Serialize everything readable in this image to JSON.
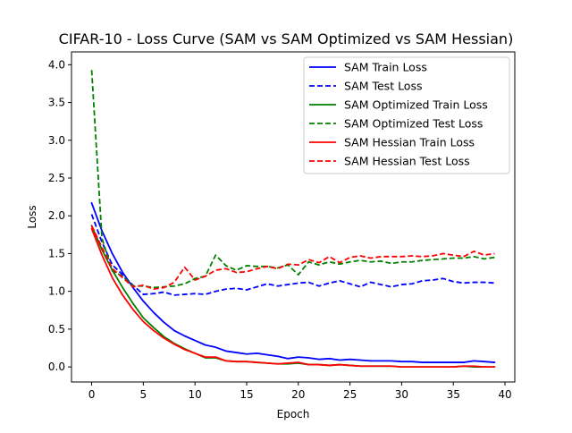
{
  "chart_data": {
    "type": "line",
    "title": "CIFAR-10 - Loss Curve (SAM vs SAM Optimized vs SAM Hessian)",
    "xlabel": "Epoch",
    "ylabel": "Loss",
    "xlim": [
      -1.95,
      40.95
    ],
    "ylim": [
      -0.2,
      4.17
    ],
    "xticks": [
      0,
      5,
      10,
      15,
      20,
      25,
      30,
      35,
      40
    ],
    "yticks": [
      0.0,
      0.5,
      1.0,
      1.5,
      2.0,
      2.5,
      3.0,
      3.5,
      4.0
    ],
    "xtick_labels": [
      "0",
      "5",
      "10",
      "15",
      "20",
      "25",
      "30",
      "35",
      "40"
    ],
    "ytick_labels": [
      "0.0",
      "0.5",
      "1.0",
      "1.5",
      "2.0",
      "2.5",
      "3.0",
      "3.5",
      "4.0"
    ],
    "grid": false,
    "legend_position": "top-right",
    "x": [
      0,
      1,
      2,
      3,
      4,
      5,
      6,
      7,
      8,
      9,
      10,
      11,
      12,
      13,
      14,
      15,
      16,
      17,
      18,
      19,
      20,
      21,
      22,
      23,
      24,
      25,
      26,
      27,
      28,
      29,
      30,
      31,
      32,
      33,
      34,
      35,
      36,
      37,
      38,
      39
    ],
    "series": [
      {
        "name": "SAM Train Loss",
        "color": "#0000ff",
        "style": "solid",
        "values": [
          2.17,
          1.8,
          1.5,
          1.25,
          1.05,
          0.87,
          0.72,
          0.59,
          0.48,
          0.41,
          0.35,
          0.29,
          0.26,
          0.21,
          0.19,
          0.17,
          0.18,
          0.16,
          0.14,
          0.11,
          0.13,
          0.12,
          0.1,
          0.11,
          0.09,
          0.1,
          0.09,
          0.08,
          0.08,
          0.08,
          0.07,
          0.07,
          0.06,
          0.06,
          0.06,
          0.06,
          0.06,
          0.08,
          0.07,
          0.06
        ]
      },
      {
        "name": "SAM Test Loss",
        "color": "#0000ff",
        "style": "dashed",
        "values": [
          2.02,
          1.65,
          1.35,
          1.22,
          1.08,
          0.96,
          0.97,
          0.99,
          0.95,
          0.96,
          0.97,
          0.96,
          1.0,
          1.03,
          1.04,
          1.02,
          1.06,
          1.1,
          1.07,
          1.09,
          1.11,
          1.12,
          1.07,
          1.11,
          1.14,
          1.1,
          1.06,
          1.12,
          1.09,
          1.06,
          1.09,
          1.1,
          1.14,
          1.15,
          1.17,
          1.13,
          1.11,
          1.12,
          1.12,
          1.11
        ]
      },
      {
        "name": "SAM Optimized Train Loss",
        "color": "#008000",
        "style": "solid",
        "values": [
          1.87,
          1.55,
          1.28,
          1.05,
          0.84,
          0.65,
          0.52,
          0.4,
          0.31,
          0.24,
          0.18,
          0.12,
          0.12,
          0.08,
          0.07,
          0.07,
          0.06,
          0.05,
          0.04,
          0.04,
          0.05,
          0.03,
          0.03,
          0.02,
          0.03,
          0.02,
          0.01,
          0.01,
          0.01,
          0.01,
          0.0,
          0.0,
          0.0,
          0.0,
          0.0,
          0.0,
          0.01,
          0.0,
          0.0,
          0.0
        ]
      },
      {
        "name": "SAM Optimized Test Loss",
        "color": "#008000",
        "style": "dashed",
        "values": [
          3.93,
          1.7,
          1.27,
          1.2,
          1.07,
          1.07,
          1.05,
          1.06,
          1.07,
          1.1,
          1.17,
          1.2,
          1.48,
          1.34,
          1.28,
          1.34,
          1.33,
          1.33,
          1.31,
          1.35,
          1.22,
          1.39,
          1.35,
          1.39,
          1.36,
          1.39,
          1.41,
          1.39,
          1.4,
          1.37,
          1.39,
          1.39,
          1.41,
          1.42,
          1.43,
          1.44,
          1.44,
          1.46,
          1.43,
          1.45
        ]
      },
      {
        "name": "SAM Hessian Train Loss",
        "color": "#ff0000",
        "style": "solid",
        "values": [
          1.83,
          1.48,
          1.18,
          0.95,
          0.76,
          0.6,
          0.48,
          0.38,
          0.3,
          0.23,
          0.18,
          0.13,
          0.13,
          0.08,
          0.07,
          0.07,
          0.06,
          0.05,
          0.04,
          0.05,
          0.06,
          0.03,
          0.03,
          0.02,
          0.03,
          0.02,
          0.01,
          0.01,
          0.01,
          0.01,
          0.0,
          0.0,
          0.0,
          0.0,
          0.0,
          0.0,
          0.01,
          0.01,
          0.0,
          0.0
        ]
      },
      {
        "name": "SAM Hessian Test Loss",
        "color": "#ff0000",
        "style": "dashed",
        "values": [
          1.87,
          1.58,
          1.3,
          1.18,
          1.06,
          1.08,
          1.03,
          1.05,
          1.12,
          1.32,
          1.15,
          1.2,
          1.28,
          1.3,
          1.25,
          1.26,
          1.3,
          1.33,
          1.3,
          1.36,
          1.35,
          1.42,
          1.38,
          1.46,
          1.38,
          1.45,
          1.47,
          1.44,
          1.46,
          1.46,
          1.46,
          1.47,
          1.46,
          1.47,
          1.5,
          1.48,
          1.46,
          1.53,
          1.48,
          1.5
        ]
      }
    ]
  }
}
